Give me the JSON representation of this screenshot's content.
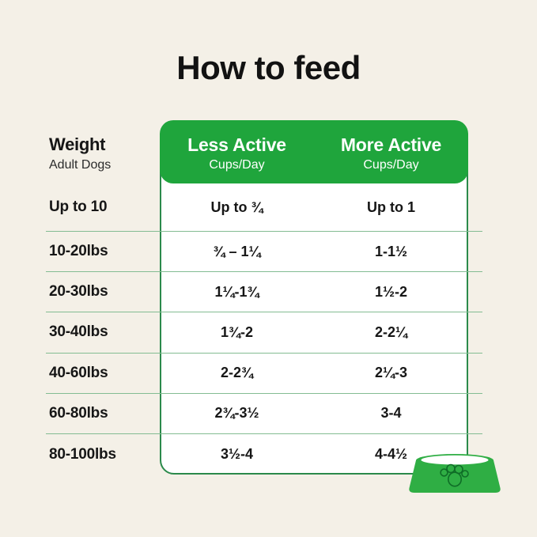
{
  "page": {
    "title": "How to feed",
    "background_color": "#f4f0e7",
    "text_color": "#161616"
  },
  "table": {
    "weight_header": {
      "title": "Weight",
      "subtitle": "Adult Dogs"
    },
    "columns": [
      {
        "label": "Less Active",
        "sublabel": "Cups/Day"
      },
      {
        "label": "More Active",
        "sublabel": "Cups/Day"
      }
    ],
    "rows": [
      {
        "weight": "Up to 10",
        "less_active": "Up to ¾",
        "more_active": "Up to 1"
      },
      {
        "weight": "10-20lbs",
        "less_active": "¾ – 1¼",
        "more_active": "1-1½"
      },
      {
        "weight": "20-30lbs",
        "less_active": "1¼-1¾",
        "more_active": "1½-2"
      },
      {
        "weight": "30-40lbs",
        "less_active": "1¾-2",
        "more_active": "2-2¼"
      },
      {
        "weight": "40-60lbs",
        "less_active": "2-2¾",
        "more_active": "2¼-3"
      },
      {
        "weight": "60-80lbs",
        "less_active": "2¾-3½",
        "more_active": "3-4"
      },
      {
        "weight": "80-100lbs",
        "less_active": "3½-4",
        "more_active": "4-4½"
      }
    ],
    "colors": {
      "header_green": "#1fa53c",
      "card_border_green": "#2b8a4b",
      "divider_green": "#83bc92",
      "header_text": "#ffffff"
    }
  },
  "bowl": {
    "name": "dog-bowl-icon",
    "body_color": "#2fae44",
    "paw_outline_color": "#0f6d27",
    "inner_color": "#ffffff"
  }
}
